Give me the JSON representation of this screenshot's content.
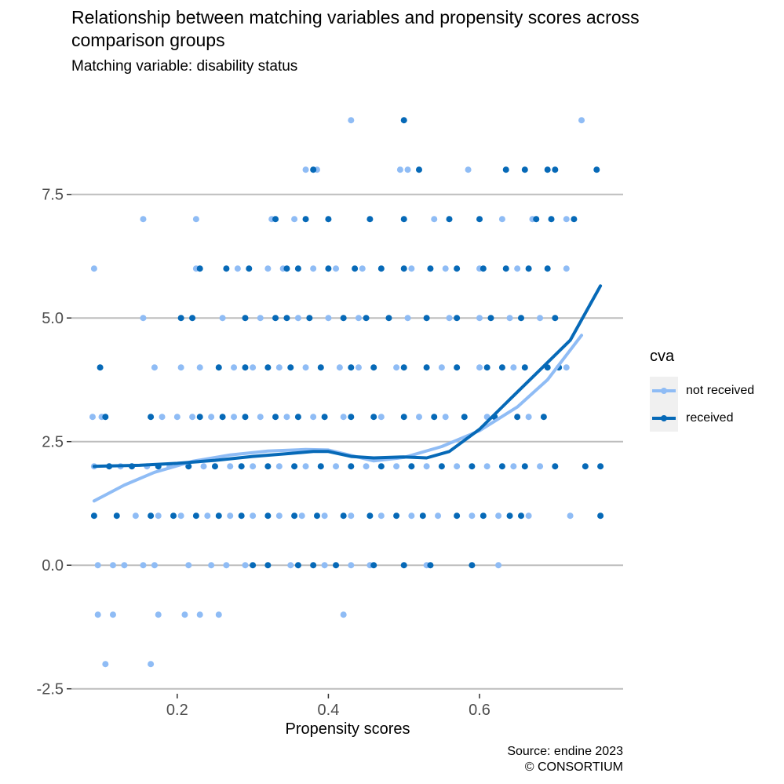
{
  "title": "Relationship between matching variables and propensity scores across comparison groups",
  "subtitle": "Matching variable: disability status",
  "caption": {
    "line1": "Source: endine 2023",
    "line2": "© CONSORTIUM"
  },
  "chart_data": {
    "type": "scatter",
    "xlabel": "Propensity scores",
    "ylabel": "",
    "xlim": [
      0.06,
      0.79
    ],
    "ylim": [
      -2.6,
      9.4
    ],
    "x_ticks": [
      0.2,
      0.4,
      0.6
    ],
    "x_tick_labels": [
      "0.2",
      "0.4",
      "0.6"
    ],
    "y_ticks": [
      -2.5,
      0,
      2.5,
      5,
      7.5
    ],
    "y_tick_labels": [
      "-2.5",
      "0.0",
      "2.5",
      "5.0",
      "7.5"
    ],
    "grid": "horizontal major",
    "legend": {
      "title": "cva",
      "position": "right"
    },
    "series": [
      {
        "name": "not received",
        "color": "#8fbcf5",
        "points": [
          [
            0.43,
            9
          ],
          [
            0.735,
            9
          ],
          [
            0.37,
            8
          ],
          [
            0.385,
            8
          ],
          [
            0.495,
            8
          ],
          [
            0.505,
            8
          ],
          [
            0.585,
            8
          ],
          [
            0.155,
            7
          ],
          [
            0.225,
            7
          ],
          [
            0.325,
            7
          ],
          [
            0.355,
            7
          ],
          [
            0.54,
            7
          ],
          [
            0.63,
            7
          ],
          [
            0.67,
            7
          ],
          [
            0.715,
            7
          ],
          [
            0.09,
            6
          ],
          [
            0.225,
            6
          ],
          [
            0.28,
            6
          ],
          [
            0.32,
            6
          ],
          [
            0.34,
            6
          ],
          [
            0.38,
            6
          ],
          [
            0.41,
            6
          ],
          [
            0.445,
            6
          ],
          [
            0.51,
            6
          ],
          [
            0.555,
            6
          ],
          [
            0.6,
            6
          ],
          [
            0.65,
            6
          ],
          [
            0.715,
            6
          ],
          [
            0.155,
            5
          ],
          [
            0.26,
            5
          ],
          [
            0.31,
            5
          ],
          [
            0.36,
            5
          ],
          [
            0.4,
            5
          ],
          [
            0.44,
            5
          ],
          [
            0.505,
            5
          ],
          [
            0.56,
            5
          ],
          [
            0.6,
            5
          ],
          [
            0.64,
            5
          ],
          [
            0.68,
            5
          ],
          [
            0.17,
            4
          ],
          [
            0.205,
            4
          ],
          [
            0.23,
            4
          ],
          [
            0.275,
            4
          ],
          [
            0.3,
            4
          ],
          [
            0.335,
            4
          ],
          [
            0.37,
            4
          ],
          [
            0.415,
            4
          ],
          [
            0.44,
            4
          ],
          [
            0.49,
            4
          ],
          [
            0.55,
            4
          ],
          [
            0.6,
            4
          ],
          [
            0.645,
            4
          ],
          [
            0.715,
            4
          ],
          [
            0.088,
            3
          ],
          [
            0.1,
            3
          ],
          [
            0.18,
            3
          ],
          [
            0.2,
            3
          ],
          [
            0.22,
            3
          ],
          [
            0.245,
            3
          ],
          [
            0.275,
            3
          ],
          [
            0.31,
            3
          ],
          [
            0.345,
            3
          ],
          [
            0.38,
            3
          ],
          [
            0.42,
            3
          ],
          [
            0.47,
            3
          ],
          [
            0.52,
            3
          ],
          [
            0.555,
            3
          ],
          [
            0.61,
            3
          ],
          [
            0.665,
            3
          ],
          [
            0.09,
            2
          ],
          [
            0.125,
            2
          ],
          [
            0.16,
            2
          ],
          [
            0.19,
            2
          ],
          [
            0.235,
            2
          ],
          [
            0.27,
            2
          ],
          [
            0.3,
            2
          ],
          [
            0.335,
            2
          ],
          [
            0.37,
            2
          ],
          [
            0.41,
            2
          ],
          [
            0.45,
            2
          ],
          [
            0.49,
            2
          ],
          [
            0.53,
            2
          ],
          [
            0.57,
            2
          ],
          [
            0.61,
            2
          ],
          [
            0.645,
            2
          ],
          [
            0.68,
            2
          ],
          [
            0.145,
            1
          ],
          [
            0.175,
            1
          ],
          [
            0.205,
            1
          ],
          [
            0.24,
            1
          ],
          [
            0.27,
            1
          ],
          [
            0.3,
            1
          ],
          [
            0.335,
            1
          ],
          [
            0.365,
            1
          ],
          [
            0.395,
            1
          ],
          [
            0.43,
            1
          ],
          [
            0.47,
            1
          ],
          [
            0.51,
            1
          ],
          [
            0.545,
            1
          ],
          [
            0.59,
            1
          ],
          [
            0.625,
            1
          ],
          [
            0.665,
            1
          ],
          [
            0.72,
            1
          ],
          [
            0.095,
            0
          ],
          [
            0.115,
            0
          ],
          [
            0.13,
            0
          ],
          [
            0.155,
            0
          ],
          [
            0.17,
            0
          ],
          [
            0.215,
            0
          ],
          [
            0.245,
            0
          ],
          [
            0.265,
            0
          ],
          [
            0.29,
            0
          ],
          [
            0.35,
            0
          ],
          [
            0.395,
            0
          ],
          [
            0.43,
            0
          ],
          [
            0.455,
            0
          ],
          [
            0.53,
            0
          ],
          [
            0.625,
            0
          ],
          [
            0.095,
            -1
          ],
          [
            0.115,
            -1
          ],
          [
            0.175,
            -1
          ],
          [
            0.21,
            -1
          ],
          [
            0.23,
            -1
          ],
          [
            0.255,
            -1
          ],
          [
            0.42,
            -1
          ],
          [
            0.105,
            -2
          ],
          [
            0.165,
            -2
          ]
        ]
      },
      {
        "name": "received",
        "color": "#0669b7",
        "points": [
          [
            0.5,
            9
          ],
          [
            0.38,
            8
          ],
          [
            0.52,
            8
          ],
          [
            0.635,
            8
          ],
          [
            0.66,
            8
          ],
          [
            0.69,
            8
          ],
          [
            0.7,
            8
          ],
          [
            0.755,
            8
          ],
          [
            0.33,
            7
          ],
          [
            0.37,
            7
          ],
          [
            0.4,
            7
          ],
          [
            0.455,
            7
          ],
          [
            0.5,
            7
          ],
          [
            0.56,
            7
          ],
          [
            0.6,
            7
          ],
          [
            0.675,
            7
          ],
          [
            0.695,
            7
          ],
          [
            0.725,
            7
          ],
          [
            0.23,
            6
          ],
          [
            0.265,
            6
          ],
          [
            0.295,
            6
          ],
          [
            0.345,
            6
          ],
          [
            0.36,
            6
          ],
          [
            0.4,
            6
          ],
          [
            0.435,
            6
          ],
          [
            0.47,
            6
          ],
          [
            0.5,
            6
          ],
          [
            0.535,
            6
          ],
          [
            0.57,
            6
          ],
          [
            0.605,
            6
          ],
          [
            0.635,
            6
          ],
          [
            0.665,
            6
          ],
          [
            0.69,
            6
          ],
          [
            0.205,
            5
          ],
          [
            0.22,
            5
          ],
          [
            0.29,
            5
          ],
          [
            0.33,
            5
          ],
          [
            0.345,
            5
          ],
          [
            0.375,
            5
          ],
          [
            0.42,
            5
          ],
          [
            0.45,
            5
          ],
          [
            0.48,
            5
          ],
          [
            0.53,
            5
          ],
          [
            0.57,
            5
          ],
          [
            0.615,
            5
          ],
          [
            0.655,
            5
          ],
          [
            0.7,
            5
          ],
          [
            0.098,
            4
          ],
          [
            0.255,
            4
          ],
          [
            0.29,
            4
          ],
          [
            0.32,
            4
          ],
          [
            0.35,
            4
          ],
          [
            0.39,
            4
          ],
          [
            0.43,
            4
          ],
          [
            0.46,
            4
          ],
          [
            0.5,
            4
          ],
          [
            0.53,
            4
          ],
          [
            0.57,
            4
          ],
          [
            0.61,
            4
          ],
          [
            0.63,
            4
          ],
          [
            0.66,
            4
          ],
          [
            0.69,
            4
          ],
          [
            0.705,
            4
          ],
          [
            0.105,
            3
          ],
          [
            0.165,
            3
          ],
          [
            0.23,
            3
          ],
          [
            0.26,
            3
          ],
          [
            0.29,
            3
          ],
          [
            0.33,
            3
          ],
          [
            0.36,
            3
          ],
          [
            0.395,
            3
          ],
          [
            0.43,
            3
          ],
          [
            0.46,
            3
          ],
          [
            0.5,
            3
          ],
          [
            0.54,
            3
          ],
          [
            0.58,
            3
          ],
          [
            0.62,
            3
          ],
          [
            0.65,
            3
          ],
          [
            0.685,
            3
          ],
          [
            0.11,
            2
          ],
          [
            0.14,
            2
          ],
          [
            0.175,
            2
          ],
          [
            0.215,
            2
          ],
          [
            0.25,
            2
          ],
          [
            0.285,
            2
          ],
          [
            0.32,
            2
          ],
          [
            0.355,
            2
          ],
          [
            0.39,
            2
          ],
          [
            0.43,
            2
          ],
          [
            0.47,
            2
          ],
          [
            0.51,
            2
          ],
          [
            0.55,
            2
          ],
          [
            0.59,
            2
          ],
          [
            0.63,
            2
          ],
          [
            0.66,
            2
          ],
          [
            0.7,
            2
          ],
          [
            0.74,
            2
          ],
          [
            0.76,
            2
          ],
          [
            0.09,
            1
          ],
          [
            0.12,
            1
          ],
          [
            0.165,
            1
          ],
          [
            0.195,
            1
          ],
          [
            0.225,
            1
          ],
          [
            0.255,
            1
          ],
          [
            0.285,
            1
          ],
          [
            0.32,
            1
          ],
          [
            0.355,
            1
          ],
          [
            0.385,
            1
          ],
          [
            0.42,
            1
          ],
          [
            0.455,
            1
          ],
          [
            0.49,
            1
          ],
          [
            0.525,
            1
          ],
          [
            0.57,
            1
          ],
          [
            0.605,
            1
          ],
          [
            0.64,
            1
          ],
          [
            0.655,
            1
          ],
          [
            0.76,
            1
          ],
          [
            0.3,
            0
          ],
          [
            0.32,
            0
          ],
          [
            0.36,
            0
          ],
          [
            0.38,
            0
          ],
          [
            0.41,
            0
          ],
          [
            0.46,
            0
          ],
          [
            0.5,
            0
          ],
          [
            0.535,
            0
          ],
          [
            0.59,
            0
          ]
        ],
        "smooth": [
          [
            0.09,
            2.0
          ],
          [
            0.15,
            2.02
          ],
          [
            0.2,
            2.06
          ],
          [
            0.25,
            2.12
          ],
          [
            0.3,
            2.2
          ],
          [
            0.35,
            2.26
          ],
          [
            0.38,
            2.3
          ],
          [
            0.4,
            2.3
          ],
          [
            0.43,
            2.2
          ],
          [
            0.46,
            2.17
          ],
          [
            0.5,
            2.19
          ],
          [
            0.53,
            2.17
          ],
          [
            0.56,
            2.3
          ],
          [
            0.6,
            2.75
          ],
          [
            0.64,
            3.35
          ],
          [
            0.68,
            3.95
          ],
          [
            0.72,
            4.55
          ],
          [
            0.76,
            5.65
          ]
        ]
      }
    ],
    "smooth_not_received": [
      [
        0.09,
        1.3
      ],
      [
        0.13,
        1.62
      ],
      [
        0.17,
        1.88
      ],
      [
        0.22,
        2.1
      ],
      [
        0.27,
        2.23
      ],
      [
        0.32,
        2.31
      ],
      [
        0.37,
        2.34
      ],
      [
        0.4,
        2.33
      ],
      [
        0.43,
        2.22
      ],
      [
        0.46,
        2.11
      ],
      [
        0.5,
        2.18
      ],
      [
        0.55,
        2.4
      ],
      [
        0.6,
        2.72
      ],
      [
        0.65,
        3.2
      ],
      [
        0.69,
        3.75
      ],
      [
        0.735,
        4.65
      ]
    ]
  }
}
